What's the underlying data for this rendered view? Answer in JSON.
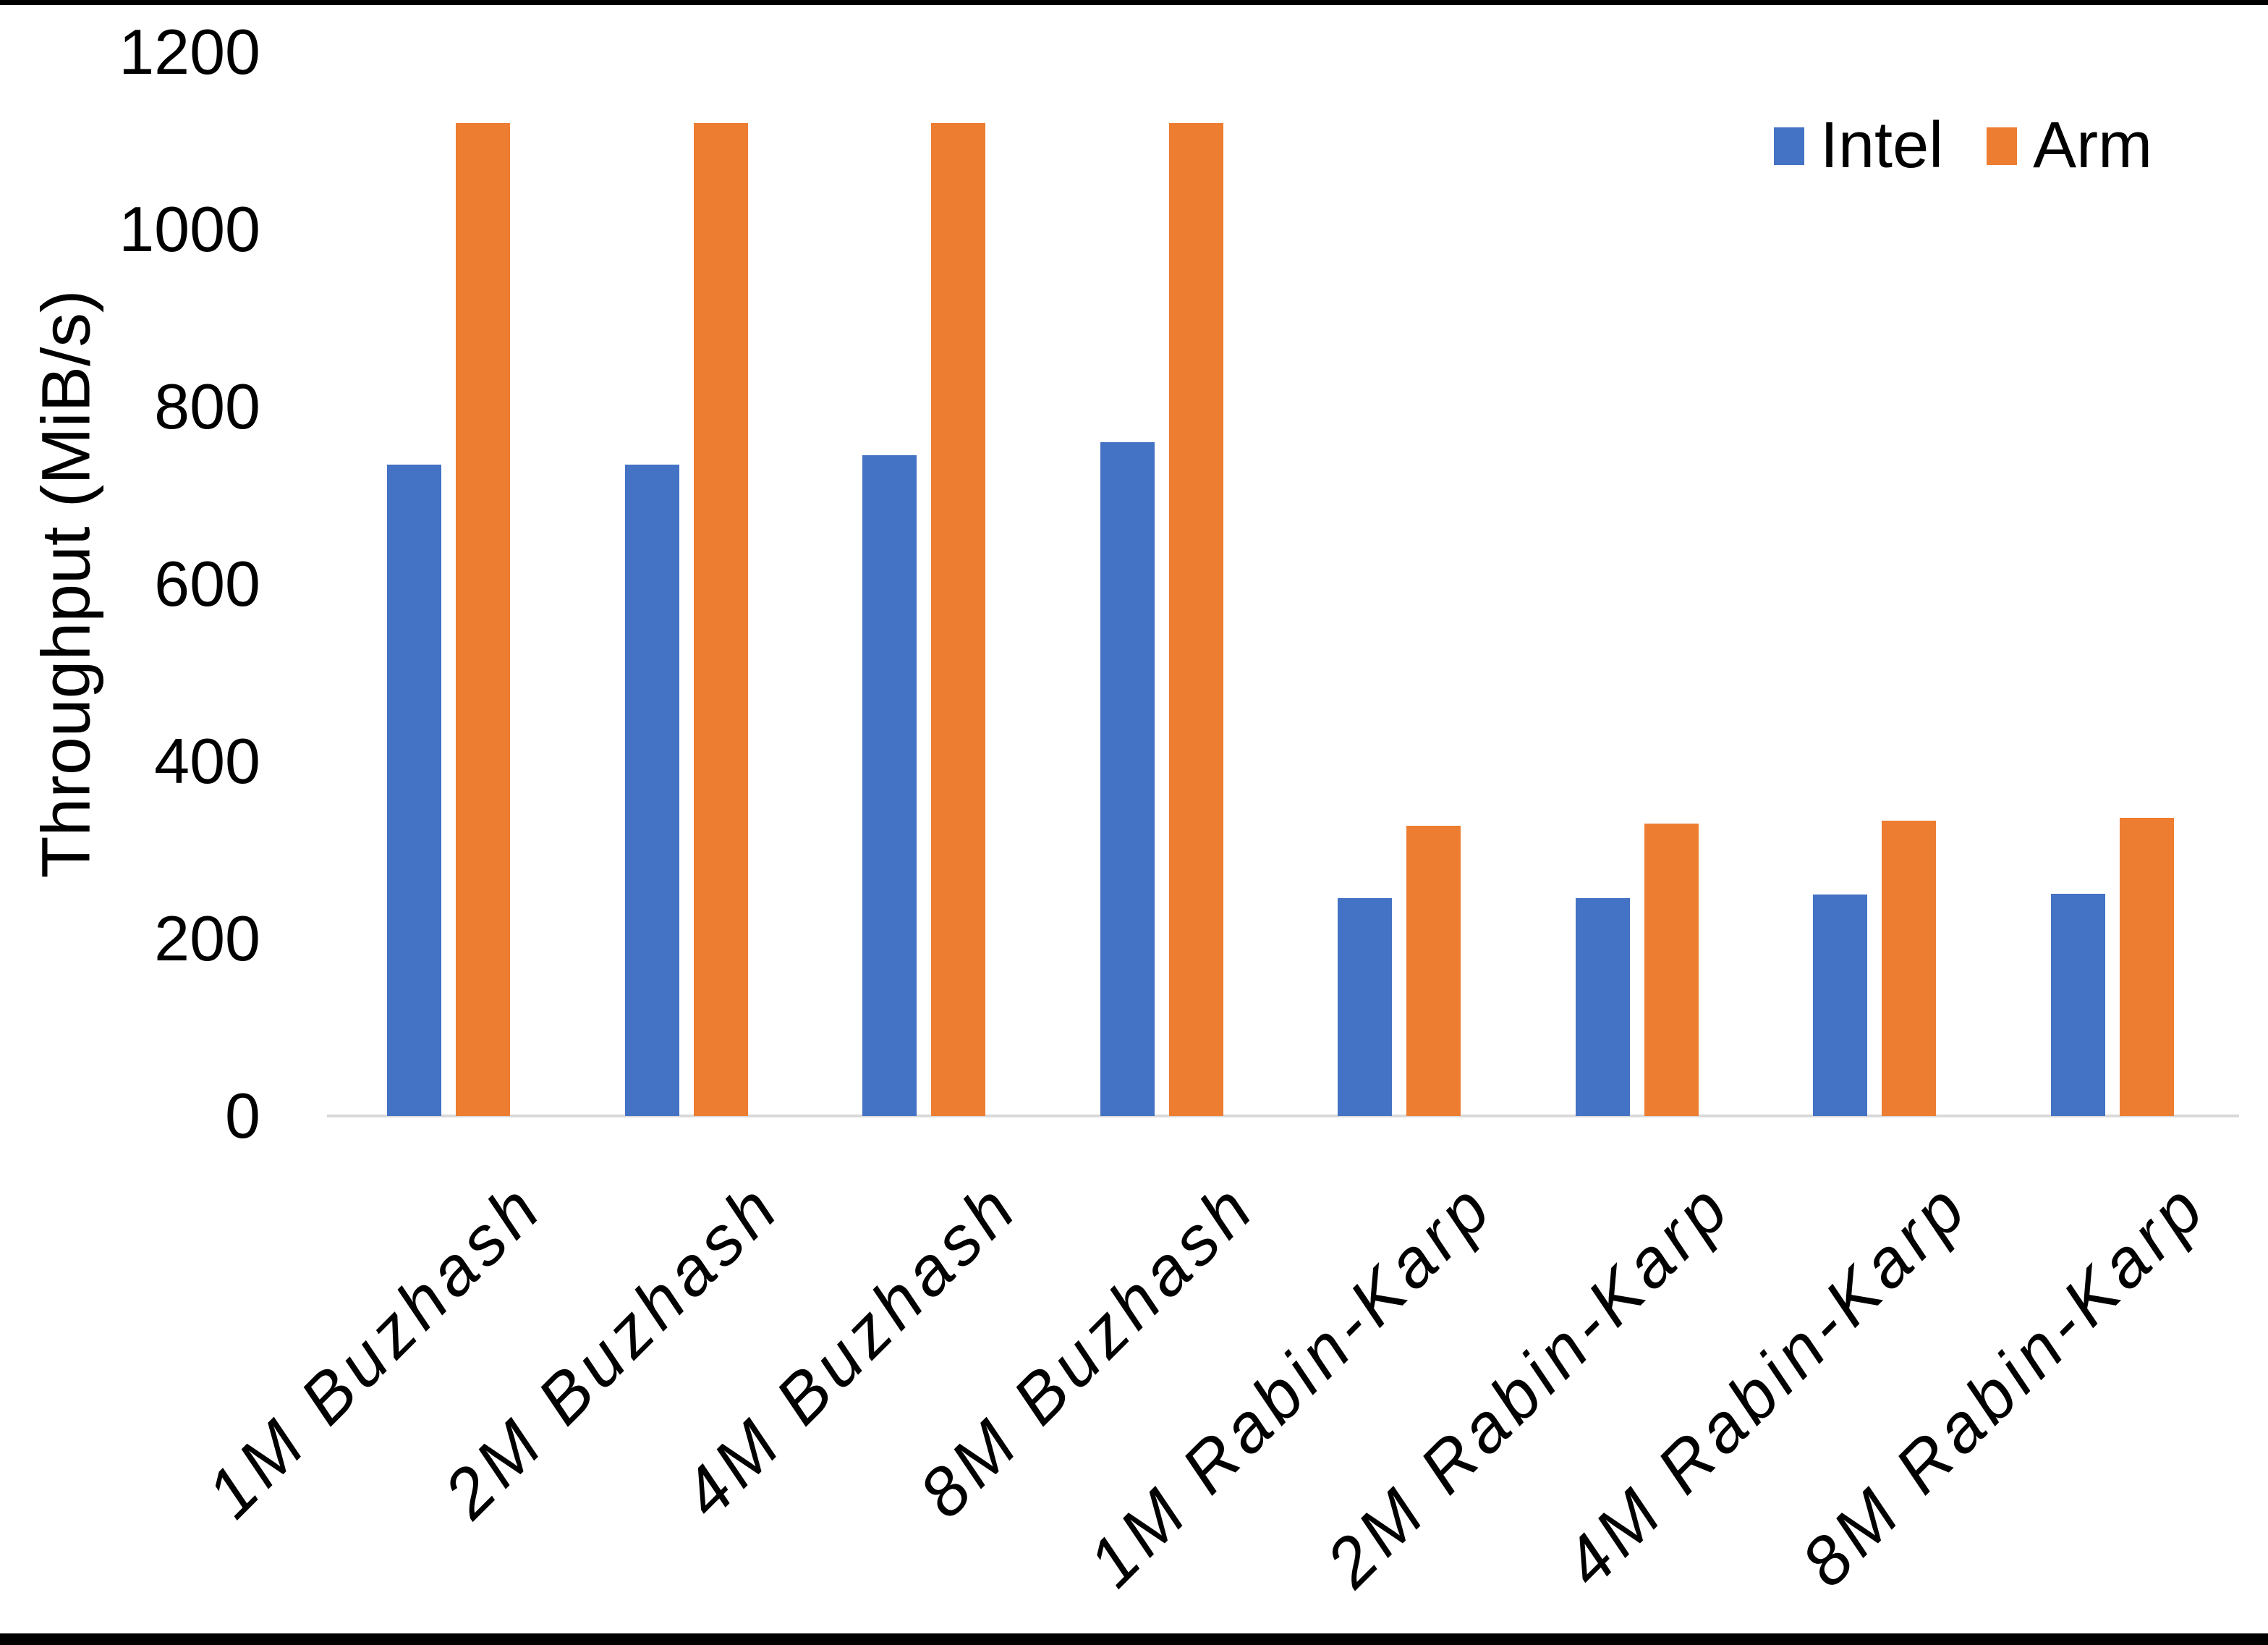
{
  "page": {
    "background": "#ffffff",
    "frame_border_color": "#000000"
  },
  "chart_data": {
    "type": "bar",
    "title": "",
    "xlabel": "",
    "ylabel": "Throughput (MiB/s)",
    "ylim": [
      0,
      1200
    ],
    "yticks": [
      0,
      200,
      400,
      600,
      800,
      1000,
      1200
    ],
    "grid": false,
    "legend_position": "top-right",
    "axis_line_color": "#D9D9D9",
    "categories": [
      "1M Buzhash",
      "2M Buzhash",
      "4M Buzhash",
      "8M Buzhash",
      "1M Rabin-Karp",
      "2M Rabin-Karp",
      "4M Rabin-Karp",
      "8M Rabin-Karp"
    ],
    "series": [
      {
        "name": "Intel",
        "color": "#4472C4",
        "values": [
          735,
          735,
          745,
          760,
          246,
          246,
          250,
          251
        ]
      },
      {
        "name": "Arm",
        "color": "#ED7D31",
        "values": [
          1120,
          1120,
          1120,
          1120,
          327,
          330,
          333,
          336
        ]
      }
    ]
  }
}
